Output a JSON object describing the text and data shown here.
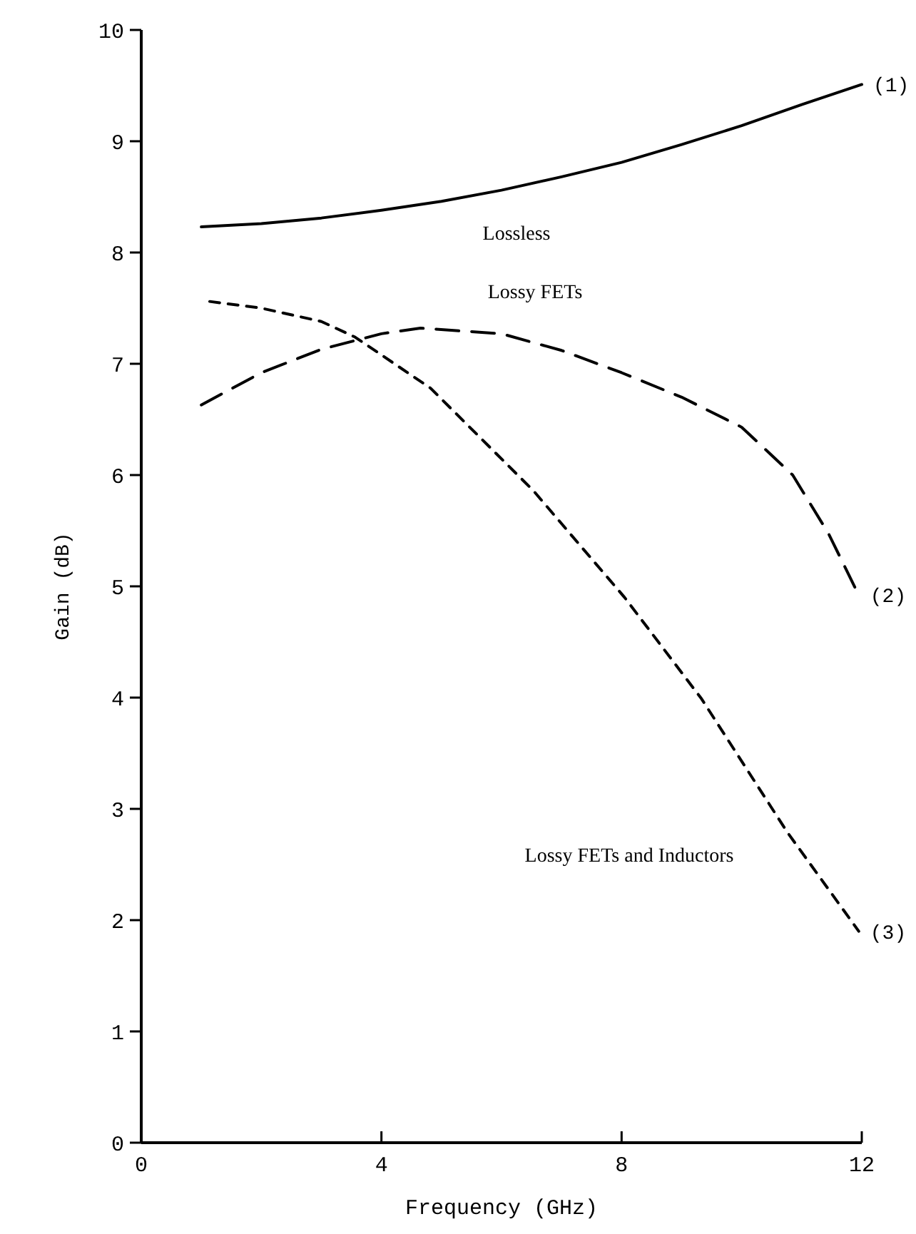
{
  "chart_data": {
    "type": "line",
    "xlabel": "Frequency (GHz)",
    "ylabel": "Gain (dB)",
    "xlim": [
      0,
      12
    ],
    "ylim": [
      0,
      10
    ],
    "xticks": [
      0,
      4,
      8,
      12
    ],
    "yticks": [
      0,
      1,
      2,
      3,
      4,
      5,
      6,
      7,
      8,
      9,
      10
    ],
    "grid": false,
    "marker": "none",
    "series": [
      {
        "name": "(1)",
        "color": "#000000",
        "line_style": "solid",
        "x": [
          1,
          2,
          3,
          4,
          5,
          6,
          7,
          8,
          9,
          10,
          11,
          12
        ],
        "values": [
          8.23,
          8.26,
          8.31,
          8.38,
          8.46,
          8.56,
          8.68,
          8.81,
          8.97,
          9.14,
          9.33,
          9.51
        ]
      },
      {
        "name": "(2)",
        "color": "#000000",
        "line_style": "dashed",
        "x": [
          1,
          2,
          3,
          4,
          4.65,
          6,
          7,
          8,
          9,
          10,
          10.85,
          11.45,
          11.95
        ],
        "values": [
          6.63,
          6.92,
          7.13,
          7.27,
          7.32,
          7.27,
          7.12,
          6.92,
          6.7,
          6.43,
          6.0,
          5.47,
          4.92
        ]
      },
      {
        "name": "(3)",
        "color": "#000000",
        "line_style": "dotted",
        "x": [
          1.14,
          2,
          3,
          3.56,
          4.82,
          6.53,
          8.05,
          9.33,
          10.76,
          11.95
        ],
        "values": [
          7.56,
          7.5,
          7.38,
          7.24,
          6.78,
          5.86,
          4.9,
          3.99,
          2.79,
          1.9
        ]
      }
    ],
    "annotations": [
      "Lossless",
      "Lossy FETs",
      "Lossy FETs and Inductors"
    ]
  }
}
